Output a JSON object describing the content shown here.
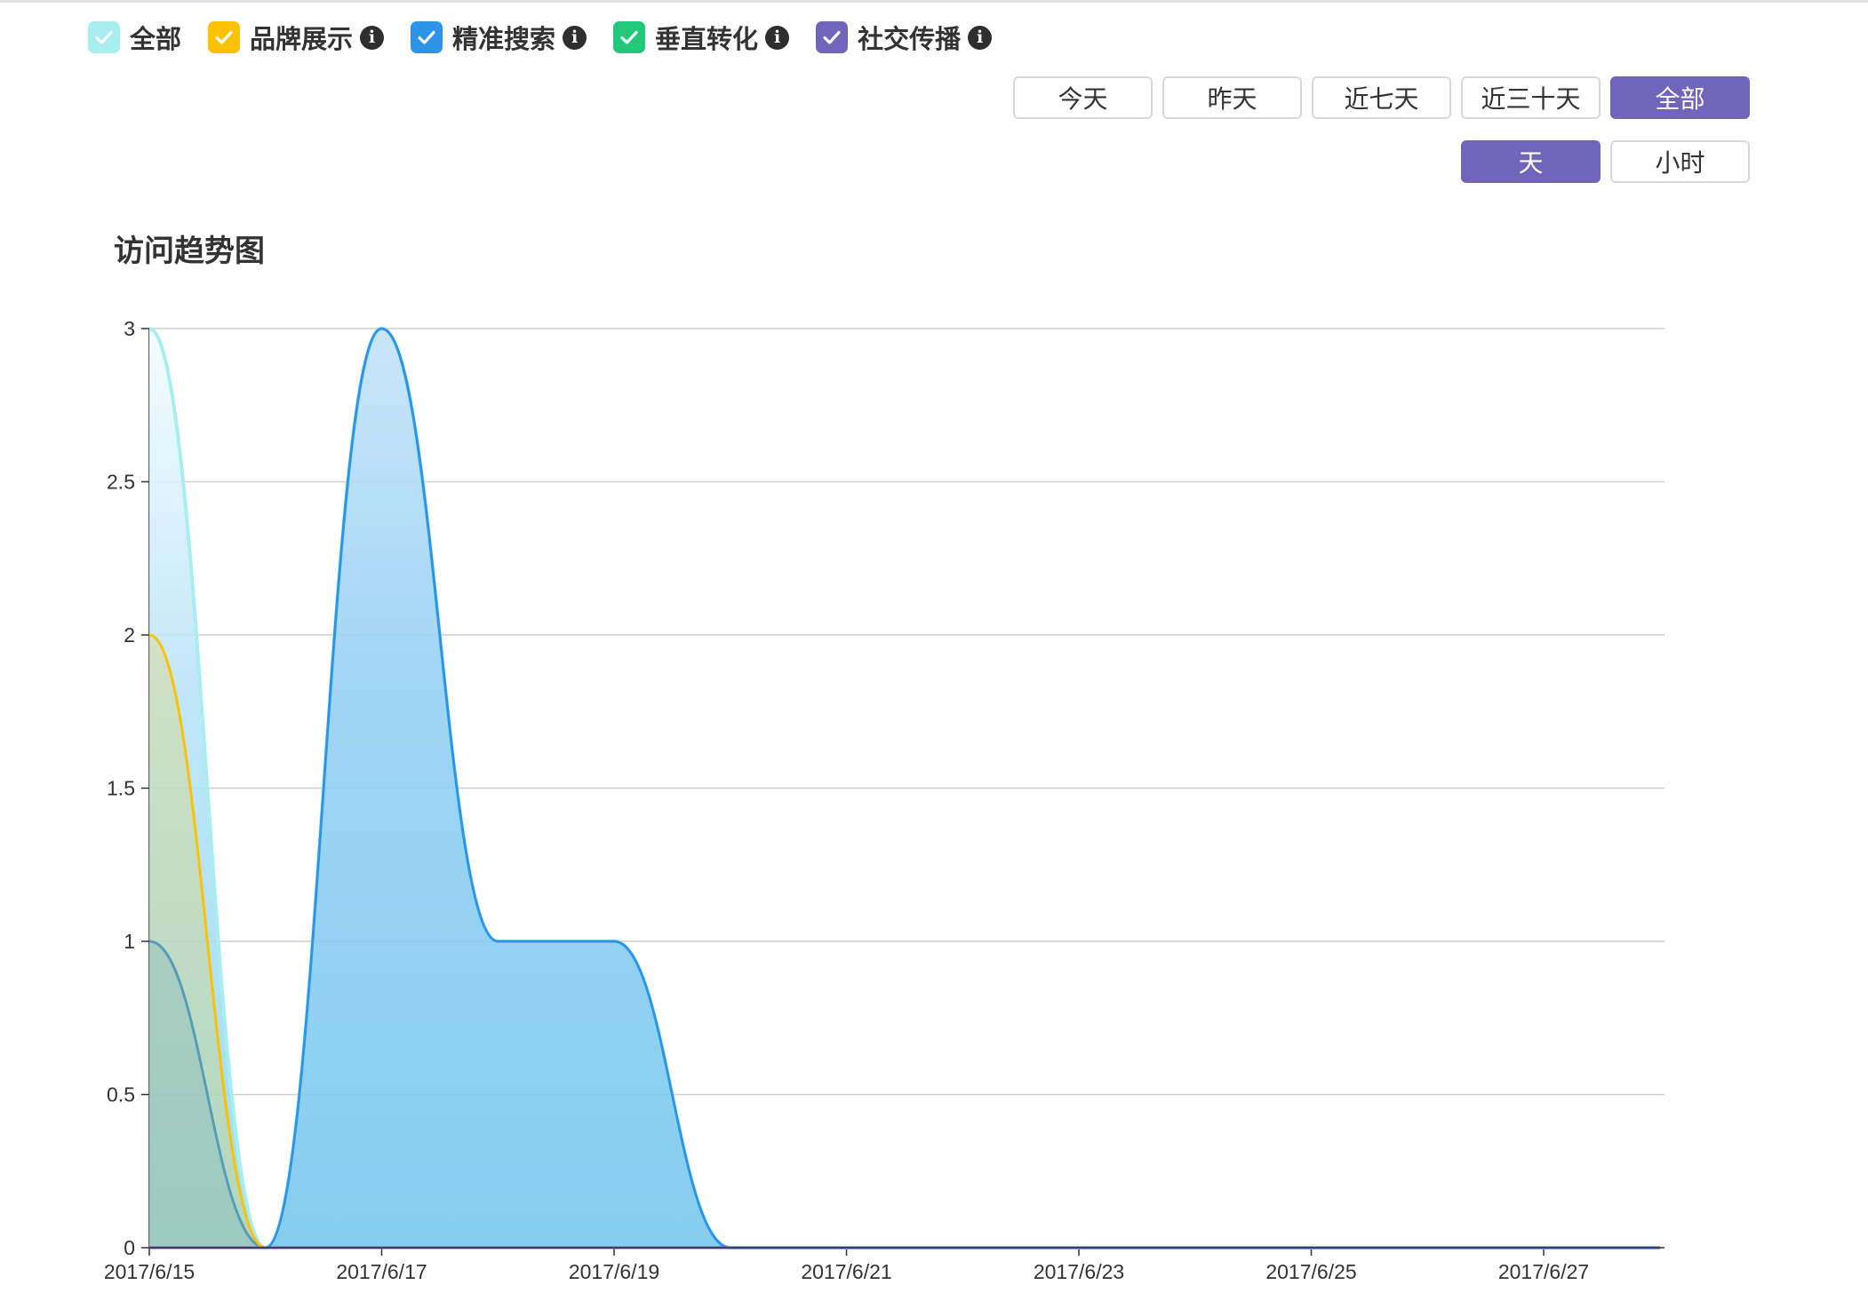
{
  "legend": [
    {
      "label": "全部",
      "color": "#a8eef0",
      "info": false
    },
    {
      "label": "品牌展示",
      "color": "#fdc100",
      "info": true
    },
    {
      "label": "精准搜索",
      "color": "#2d94e8",
      "info": true
    },
    {
      "label": "垂直转化",
      "color": "#22c77a",
      "info": true
    },
    {
      "label": "社交传播",
      "color": "#7165bb",
      "info": true
    }
  ],
  "info_icon_glyph": "i",
  "range_buttons": [
    {
      "label": "今天",
      "active": false
    },
    {
      "label": "昨天",
      "active": false
    },
    {
      "label": "近七天",
      "active": false
    },
    {
      "label": "近三十天",
      "active": false
    },
    {
      "label": "全部",
      "active": true
    }
  ],
  "granularity_buttons": [
    {
      "label": "天",
      "active": true
    },
    {
      "label": "小时",
      "active": false
    }
  ],
  "accent_color": "#7165bb",
  "chart_data": {
    "type": "area",
    "title": "访问趋势图",
    "x": [
      "2017/6/15",
      "2017/6/16",
      "2017/6/17",
      "2017/6/18",
      "2017/6/19",
      "2017/6/20",
      "2017/6/21",
      "2017/6/22",
      "2017/6/23",
      "2017/6/24",
      "2017/6/25",
      "2017/6/26",
      "2017/6/27",
      "2017/6/28"
    ],
    "xticks": [
      "2017/6/15",
      "2017/6/17",
      "2017/6/19",
      "2017/6/21",
      "2017/6/23",
      "2017/6/25",
      "2017/6/27"
    ],
    "ylim": [
      0,
      3
    ],
    "yticks": [
      0,
      0.5,
      1,
      1.5,
      2,
      2.5,
      3
    ],
    "grid": true,
    "series": [
      {
        "name": "全部",
        "color": "#a8eef0",
        "values": [
          3,
          0,
          3,
          1,
          1,
          0,
          0,
          0,
          0,
          0,
          0,
          0,
          0,
          0
        ]
      },
      {
        "name": "品牌展示",
        "color": "#fdc100",
        "values": [
          2,
          0,
          0,
          0,
          0,
          0,
          0,
          0,
          0,
          0,
          0,
          0,
          0,
          0
        ]
      },
      {
        "name": "精准搜索",
        "color": "#2d94e8",
        "values": [
          1,
          0,
          3,
          1,
          1,
          0,
          0,
          0,
          0,
          0,
          0,
          0,
          0,
          0
        ]
      },
      {
        "name": "垂直转化",
        "color": "#22c77a",
        "values": [
          0,
          0,
          0,
          0,
          0,
          0,
          0,
          0,
          0,
          0,
          0,
          0,
          0,
          0
        ]
      },
      {
        "name": "社交传播",
        "color": "#7165bb",
        "values": [
          0,
          0,
          0,
          0,
          0,
          0,
          0,
          0,
          0,
          0,
          0,
          0,
          0,
          0
        ]
      }
    ]
  }
}
